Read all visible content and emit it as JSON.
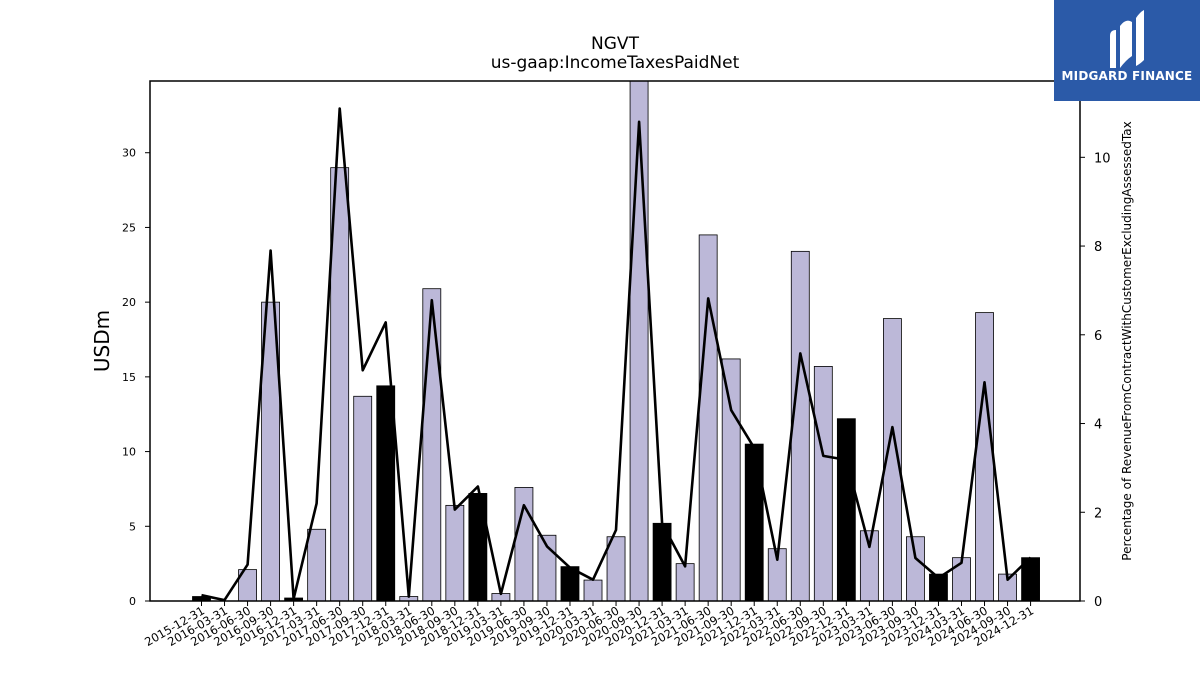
{
  "chart_data": {
    "type": "bar",
    "title": "NGVT",
    "subtitle": "us-gaap:IncomeTaxesPaidNet",
    "ylabel": "USDm",
    "y2label": "Percentage of RevenueFromContractWithCustomerExcludingAssessedTax",
    "ylim": [
      0,
      34.8
    ],
    "y2lim": [
      0,
      11.72
    ],
    "yticks": [
      0,
      5,
      10,
      15,
      20,
      25,
      30
    ],
    "y2ticks": [
      0,
      2,
      4,
      6,
      8,
      10
    ],
    "categories": [
      "2015-12-31",
      "2016-03-31",
      "2016-06-30",
      "2016-09-30",
      "2016-12-31",
      "2017-03-31",
      "2017-06-30",
      "2017-09-30",
      "2017-12-31",
      "2018-03-31",
      "2018-06-30",
      "2018-09-30",
      "2018-12-31",
      "2019-03-31",
      "2019-06-30",
      "2019-09-30",
      "2019-12-31",
      "2020-03-31",
      "2020-06-30",
      "2020-09-30",
      "2020-12-31",
      "2021-03-31",
      "2021-06-30",
      "2021-09-30",
      "2021-12-31",
      "2022-03-31",
      "2022-06-30",
      "2022-09-30",
      "2022-12-31",
      "2023-03-31",
      "2023-06-30",
      "2023-09-30",
      "2023-12-31",
      "2024-03-31",
      "2024-06-30",
      "2024-09-30",
      "2024-12-31"
    ],
    "series": [
      {
        "kind": "bar",
        "values": [
          0.3,
          0,
          2.1,
          20,
          0.2,
          4.8,
          29,
          13.7,
          14.4,
          0.3,
          20.9,
          6.4,
          7.2,
          0.5,
          7.6,
          4.4,
          2.3,
          1.4,
          4.3,
          34.8,
          5.2,
          2.5,
          24.5,
          16.2,
          10.5,
          3.5,
          23.4,
          15.7,
          12.2,
          4.7,
          18.9,
          4.3,
          1.8,
          2.9,
          19.3,
          1.8,
          2.9
        ],
        "highlight": [
          true,
          false,
          false,
          false,
          true,
          false,
          false,
          false,
          true,
          false,
          false,
          false,
          true,
          false,
          false,
          false,
          true,
          false,
          false,
          false,
          true,
          false,
          false,
          false,
          true,
          false,
          false,
          false,
          true,
          false,
          false,
          false,
          true,
          false,
          false,
          false,
          true
        ],
        "color": "#bcb8d8",
        "highlight_color": "#000000"
      },
      {
        "kind": "line",
        "axis": "right",
        "values": [
          0.13,
          0.02,
          0.82,
          7.9,
          0.05,
          2.2,
          11.1,
          5.2,
          6.28,
          0.1,
          6.78,
          2.06,
          2.58,
          0.16,
          2.16,
          1.23,
          0.75,
          0.48,
          1.6,
          10.8,
          1.75,
          0.78,
          6.82,
          4.3,
          3.45,
          0.93,
          5.58,
          3.27,
          3.18,
          1.22,
          3.92,
          0.97,
          0.52,
          0.86,
          4.93,
          0.48,
          0.98
        ],
        "color": "#000000"
      }
    ]
  },
  "brand": {
    "name": "MIDGARD FINANCE",
    "bg": "#2b5aa8",
    "logo_icon": "midgard-m-icon"
  }
}
